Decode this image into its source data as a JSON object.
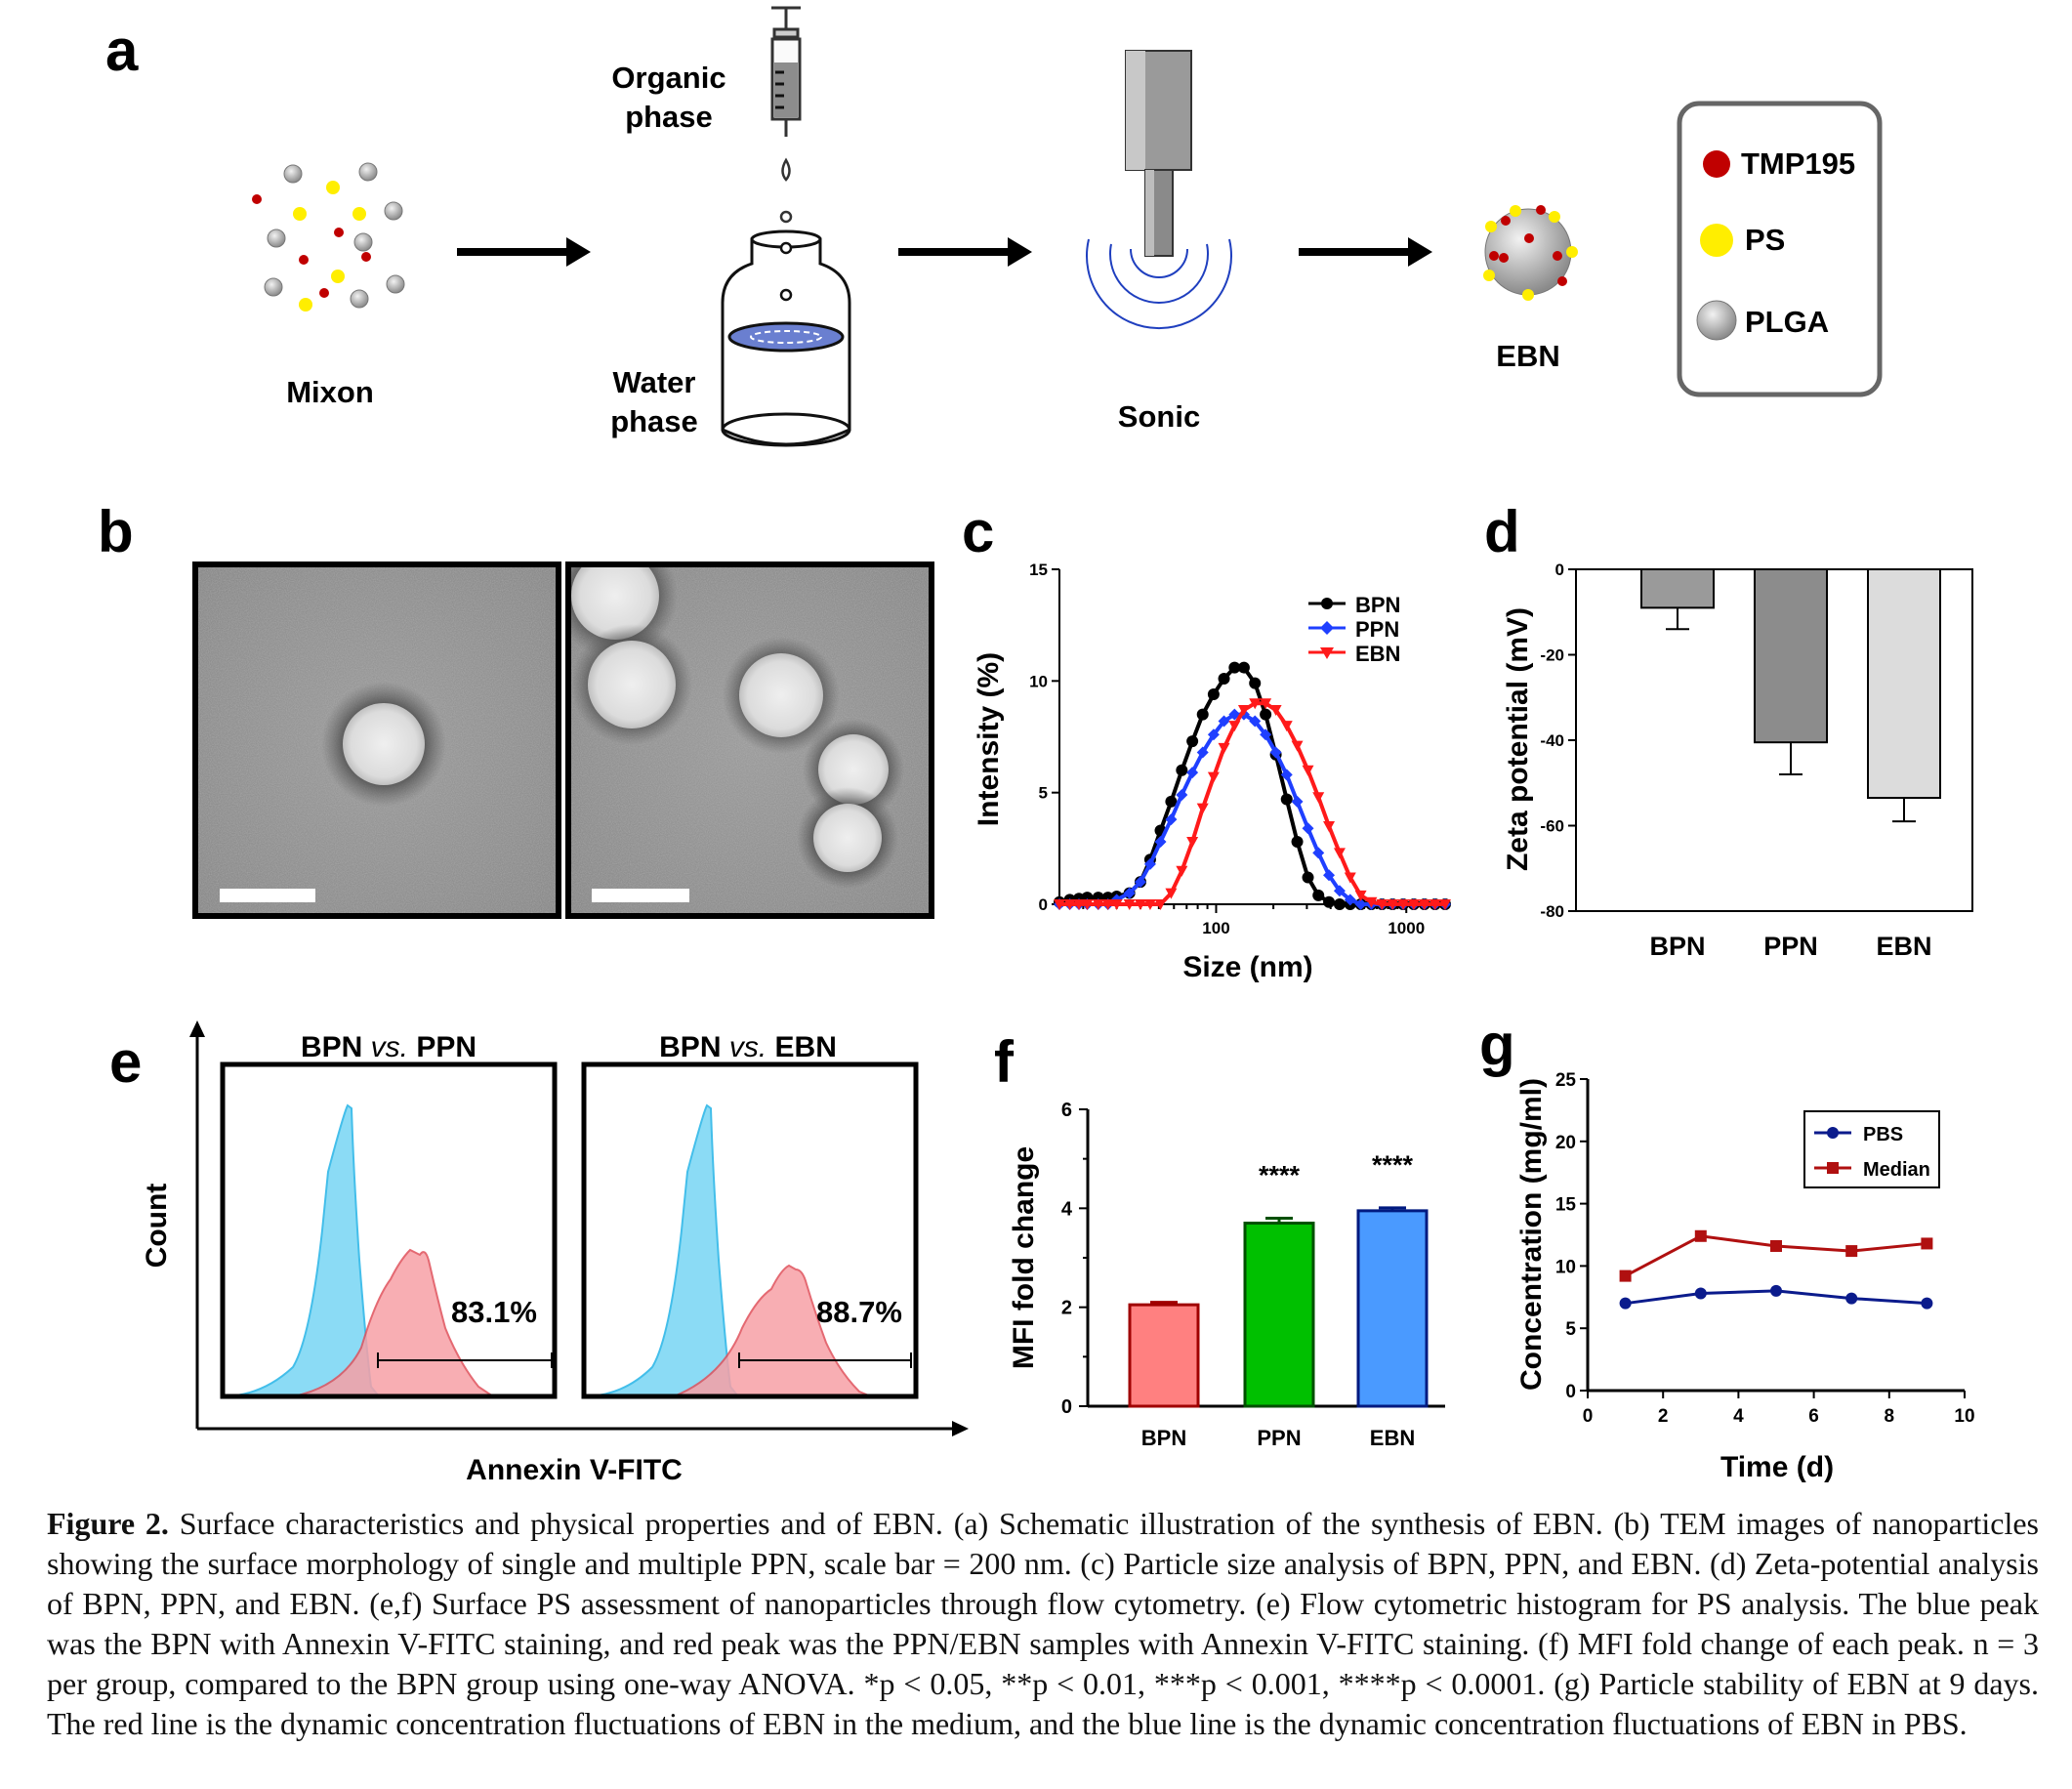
{
  "panel_labels": {
    "a": "a",
    "b": "b",
    "c": "c",
    "d": "d",
    "e": "e",
    "f": "f",
    "g": "g"
  },
  "panel_a": {
    "mixon_label": "Mixon",
    "organic_label_1": "Organic",
    "organic_label_2": "phase",
    "water_label_1": "Water",
    "water_label_2": "phase",
    "sonic_label": "Sonic",
    "ebn_label": "EBN",
    "legend": [
      {
        "label": "TMP195",
        "color": "#c00000"
      },
      {
        "label": "PS",
        "color": "#ffee00"
      },
      {
        "label": "PLGA",
        "color": "#b0b0b0"
      }
    ]
  },
  "colors": {
    "bpn_line": "#000000",
    "ppn_line": "#1f3fff",
    "ebn_line": "#ff1a1a",
    "bar_bpn_d": "#9a9a9a",
    "bar_ppn_d": "#8c8c8c",
    "bar_ebn_d": "#dcdcdc",
    "bar_bpn_f": "#ff8080",
    "bar_ppn_f": "#00c000",
    "bar_ebn_f": "#4a9aff",
    "pbs_line": "#0b1b8c",
    "median_line": "#b01010",
    "hist_blue": "#7fd8f5",
    "hist_red": "#f7a0a6"
  },
  "chart_data": [
    {
      "id": "c",
      "type": "line",
      "xlabel": "Size (nm)",
      "ylabel": "Intensity (%)",
      "xscale": "log",
      "xlim": [
        15,
        1600
      ],
      "ylim": [
        0,
        15
      ],
      "xticks": [
        100,
        1000
      ],
      "yticks": [
        0,
        5,
        10,
        15
      ],
      "legend_position": "top-right",
      "series": [
        {
          "name": "BPN",
          "x": [
            15,
            17,
            19,
            21,
            24,
            27,
            30,
            35,
            40,
            45,
            51,
            58,
            66,
            75,
            85,
            97,
            110,
            125,
            140,
            160,
            182,
            206,
            235,
            267,
            304,
            345,
            392,
            446,
            507,
            576,
            655,
            745,
            847,
            963,
            1095,
            1245,
            1416,
            1600
          ],
          "y": [
            0.1,
            0.2,
            0.25,
            0.3,
            0.3,
            0.3,
            0.35,
            0.5,
            1.0,
            2.0,
            3.3,
            4.6,
            6.0,
            7.3,
            8.5,
            9.4,
            10.1,
            10.6,
            10.6,
            9.9,
            8.5,
            6.7,
            4.7,
            2.8,
            1.2,
            0.4,
            0.1,
            0,
            0,
            0,
            0,
            0,
            0,
            0,
            0,
            0,
            0,
            0
          ]
        },
        {
          "name": "PPN",
          "x": [
            15,
            17,
            19,
            21,
            24,
            27,
            30,
            35,
            40,
            45,
            51,
            58,
            66,
            75,
            85,
            97,
            110,
            125,
            140,
            160,
            182,
            206,
            235,
            267,
            304,
            345,
            392,
            446,
            507,
            576,
            655,
            745,
            847,
            963,
            1095,
            1245,
            1416,
            1600
          ],
          "y": [
            0,
            0,
            0,
            0,
            0,
            0,
            0.2,
            0.5,
            1.0,
            1.8,
            2.8,
            3.8,
            4.9,
            5.9,
            6.8,
            7.6,
            8.2,
            8.5,
            8.5,
            8.2,
            7.6,
            6.8,
            5.8,
            4.6,
            3.4,
            2.3,
            1.3,
            0.6,
            0.2,
            0,
            0,
            0,
            0,
            0,
            0,
            0,
            0,
            0
          ]
        },
        {
          "name": "EBN",
          "x": [
            15,
            17,
            19,
            21,
            24,
            27,
            30,
            35,
            40,
            45,
            51,
            58,
            66,
            75,
            85,
            97,
            110,
            125,
            140,
            160,
            182,
            206,
            235,
            267,
            304,
            345,
            392,
            446,
            507,
            576,
            655,
            745,
            847,
            963,
            1095,
            1245,
            1416,
            1600
          ],
          "y": [
            0,
            0,
            0,
            0,
            0,
            0,
            0,
            0,
            0,
            0,
            0,
            0.5,
            1.5,
            2.8,
            4.3,
            5.7,
            7.0,
            8.0,
            8.7,
            9.0,
            9.0,
            8.7,
            8.0,
            7.1,
            6.0,
            4.8,
            3.5,
            2.3,
            1.2,
            0.4,
            0.1,
            0,
            0,
            0,
            0,
            0,
            0,
            0
          ]
        }
      ]
    },
    {
      "id": "d",
      "type": "bar",
      "ylabel": "Zeta potential (mV)",
      "categories": [
        "BPN",
        "PPN",
        "EBN"
      ],
      "values": [
        -9,
        -40.5,
        -53.5
      ],
      "errors": [
        5,
        7.5,
        5.5
      ],
      "ylim": [
        -80,
        0
      ],
      "yticks": [
        0,
        -20,
        -40,
        -60,
        -80
      ]
    },
    {
      "id": "e",
      "type": "histogram",
      "ylabel": "Count",
      "xlabel": "Annexin V-FITC",
      "panels": [
        {
          "title_left": "BPN",
          "title_vs": "vs.",
          "title_right": "PPN",
          "gate_percent": "83.1%"
        },
        {
          "title_left": "BPN",
          "title_vs": "vs.",
          "title_right": "EBN",
          "gate_percent": "88.7%"
        }
      ]
    },
    {
      "id": "f",
      "type": "bar",
      "ylabel": "MFI fold change",
      "categories": [
        "BPN",
        "PPN",
        "EBN"
      ],
      "values": [
        2.05,
        3.7,
        3.95
      ],
      "errors": [
        0.05,
        0.1,
        0.06
      ],
      "significance": [
        "",
        "****",
        "****"
      ],
      "ylim": [
        0,
        6
      ],
      "yticks": [
        0,
        2,
        4,
        6
      ]
    },
    {
      "id": "g",
      "type": "line",
      "xlabel": "Time (d)",
      "ylabel": "Concentration (mg/ml)",
      "xlim": [
        0,
        10
      ],
      "ylim": [
        0,
        25
      ],
      "xticks": [
        0,
        2,
        4,
        6,
        8,
        10
      ],
      "yticks": [
        0,
        5,
        10,
        15,
        20,
        25
      ],
      "legend_position": "top-right",
      "series": [
        {
          "name": "PBS",
          "x": [
            1,
            3,
            5,
            7,
            9
          ],
          "y": [
            7.0,
            7.8,
            8.0,
            7.4,
            7.0
          ]
        },
        {
          "name": "Median",
          "x": [
            1,
            3,
            5,
            7,
            9
          ],
          "y": [
            9.2,
            12.4,
            11.6,
            11.2,
            11.8
          ]
        }
      ]
    }
  ],
  "caption": {
    "figure_label": "Figure 2.",
    "text": "Surface characteristics and physical properties and of EBN. (a) Schematic illustration of the synthesis of EBN. (b) TEM images of nanoparticles showing the surface morphology of single and multiple PPN, scale bar = 200 nm. (c) Particle size analysis of BPN, PPN, and EBN. (d) Zeta-potential analysis of BPN, PPN, and EBN. (e,f) Surface PS assessment of nanoparticles through flow cytometry. (e) Flow cytometric histogram for PS analysis. The blue peak was the BPN with Annexin V-FITC staining, and red peak was the PPN/EBN samples with Annexin V-FITC staining. (f) MFI fold change of each peak. n = 3 per group, compared to the BPN group using one-way ANOVA. *p < 0.05, **p < 0.01, ***p < 0.001, ****p < 0.0001. (g) Particle stability of EBN at 9 days. The red line is the dynamic concentration fluctuations of EBN in the medium, and the blue line is the dynamic concentration fluctuations of EBN in PBS."
  }
}
